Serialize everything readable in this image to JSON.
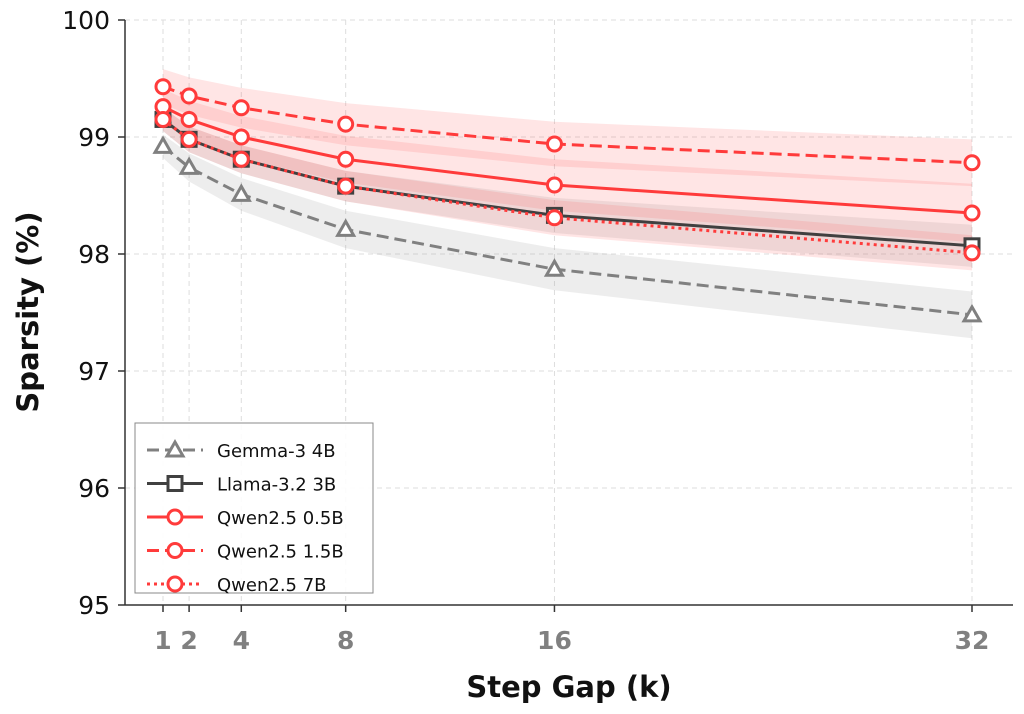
{
  "chart_data": {
    "type": "line",
    "title": "",
    "xlabel": "Step Gap (k)",
    "ylabel": "Sparsity (%)",
    "x": [
      1,
      2,
      4,
      8,
      16,
      32
    ],
    "xticks": [
      "1",
      "2",
      "4",
      "8",
      "16",
      "32"
    ],
    "yticks": [
      "95",
      "96",
      "97",
      "98",
      "99",
      "100"
    ],
    "ylim": [
      95,
      100
    ],
    "xlim": [
      -3.5,
      33.5
    ],
    "grid": true,
    "legend_position": "bottom-left",
    "series": [
      {
        "name": "Gemma-3 4B",
        "color": "#808080",
        "marker": "triangle",
        "dash": "dashed",
        "values": [
          98.92,
          98.74,
          98.51,
          98.21,
          97.87,
          97.48
        ],
        "band": [
          0.1,
          0.12,
          0.14,
          0.16,
          0.18,
          0.2
        ]
      },
      {
        "name": "Llama-3.2 3B",
        "color": "#404040",
        "marker": "square",
        "dash": "solid",
        "values": [
          99.15,
          98.98,
          98.81,
          98.58,
          98.33,
          98.07
        ],
        "band": [
          0.1,
          0.11,
          0.12,
          0.13,
          0.15,
          0.18
        ]
      },
      {
        "name": "Qwen2.5 0.5B",
        "color": "#ff3b3b",
        "marker": "circle",
        "dash": "solid",
        "values": [
          99.26,
          99.15,
          99.0,
          98.81,
          98.59,
          98.35
        ],
        "band": [
          0.15,
          0.16,
          0.18,
          0.2,
          0.22,
          0.25
        ]
      },
      {
        "name": "Qwen2.5 1.5B",
        "color": "#ff3b3b",
        "marker": "circle",
        "dash": "dashed",
        "values": [
          99.43,
          99.35,
          99.25,
          99.11,
          98.94,
          98.78
        ],
        "band": [
          0.15,
          0.16,
          0.17,
          0.18,
          0.19,
          0.2
        ]
      },
      {
        "name": "Qwen2.5 7B",
        "color": "#ff3b3b",
        "marker": "circle",
        "dash": "dotted",
        "values": [
          99.15,
          98.98,
          98.81,
          98.58,
          98.31,
          98.01
        ],
        "band": [
          0.1,
          0.11,
          0.12,
          0.13,
          0.15,
          0.15
        ]
      }
    ]
  }
}
